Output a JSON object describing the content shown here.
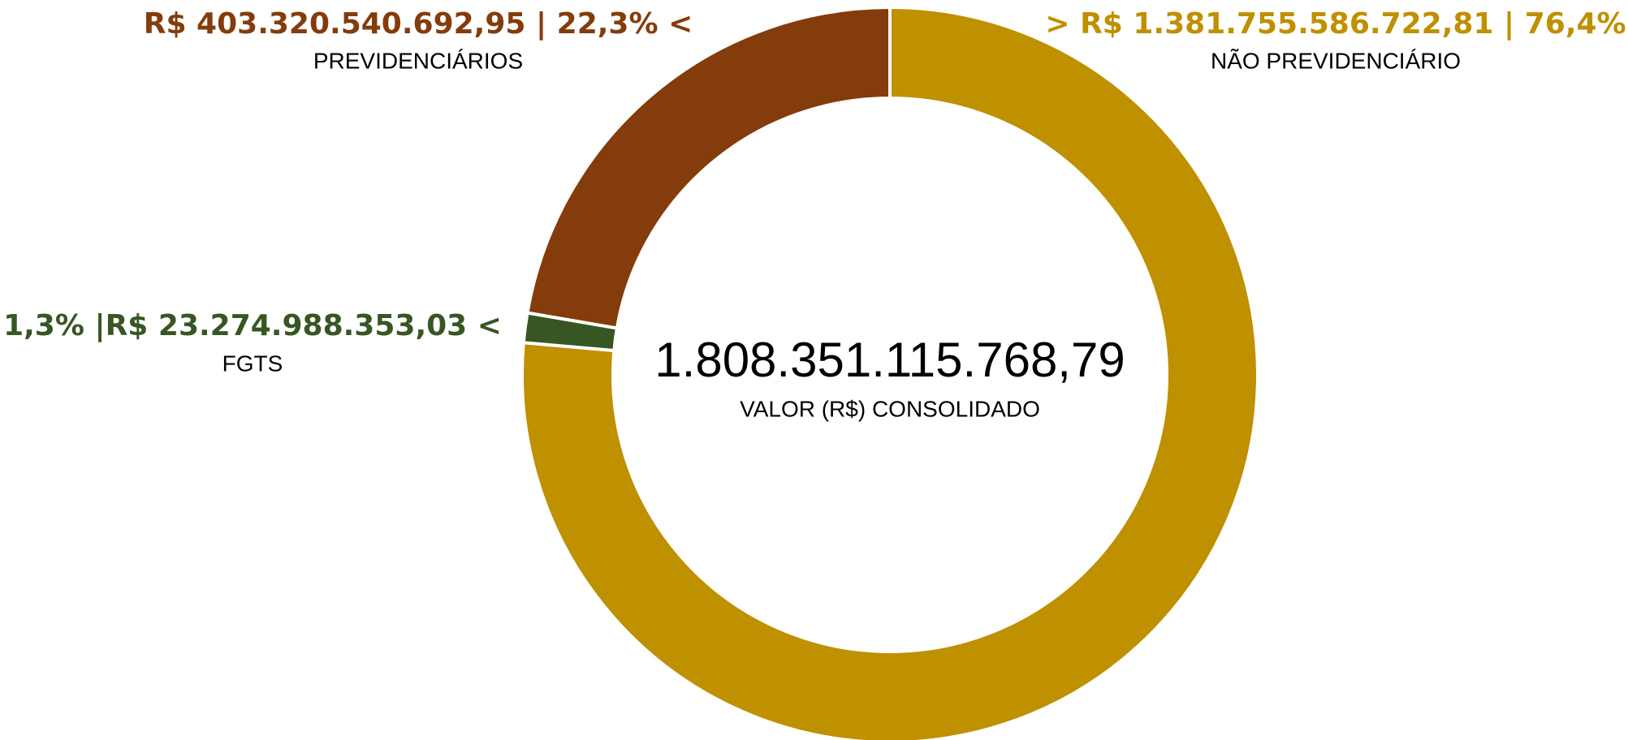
{
  "chart_data": {
    "type": "pie",
    "donut": true,
    "categories": [
      "NÃO PREVIDENCIÁRIO",
      "FGTS",
      "PREVIDENCIÁRIOS"
    ],
    "values": [
      76.4,
      1.3,
      22.3
    ],
    "value_labels": [
      "> R$ 1.381.755.586.722,81 | 76,4%",
      "1,3% |R$ 23.274.988.353,03 <",
      "R$  403.320.540.692,95 | 22,3% <"
    ],
    "colors": [
      "#BF9000",
      "#375623",
      "#843C0C"
    ],
    "center_value": "1.808.351.115.768,79",
    "center_label": "VALOR (R$) CONSOLIDADO"
  }
}
